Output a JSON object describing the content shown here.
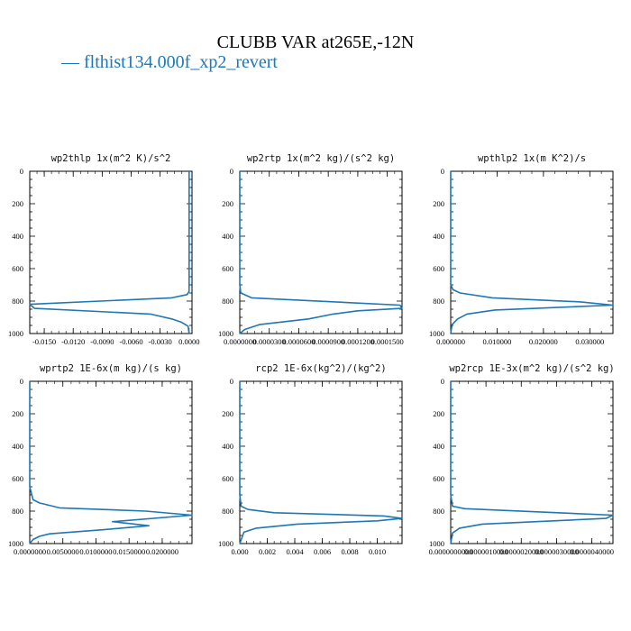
{
  "title": "CLUBB VAR at265E,-12N",
  "legend": {
    "entries": [
      {
        "marker": "—",
        "label": "flthist134.000f_xp2_revert",
        "color": "#1f77b4"
      }
    ]
  },
  "chart_data": [
    {
      "type": "line",
      "title": "wp2thlp  1x(m^2 K)/s^2",
      "xlim": [
        -0.0165,
        0.0003
      ],
      "ylim": [
        1000,
        0
      ],
      "xticks": [
        "-0.0150",
        "-0.0120",
        "-0.0090",
        "-0.0060",
        "-0.0030",
        "0.0000"
      ],
      "xtick_values": [
        -0.015,
        -0.012,
        -0.009,
        -0.006,
        -0.003,
        0.0
      ],
      "yticks": [
        "0",
        "200",
        "400",
        "600",
        "800",
        "1000"
      ],
      "series": [
        {
          "color": "#1f77b4",
          "x": [
            0.0,
            0.0,
            0.0,
            0.0,
            0.0,
            0.0,
            -0.0002,
            -0.0018,
            -0.0165,
            -0.016,
            -0.004,
            -0.0018,
            -0.0008,
            -0.0001,
            0.0
          ],
          "y": [
            0,
            200,
            400,
            600,
            700,
            740,
            760,
            780,
            820,
            845,
            880,
            910,
            930,
            955,
            1000
          ]
        }
      ]
    },
    {
      "type": "line",
      "title": "wp2rtp  1x(m^2 kg)/(s^2 kg)",
      "xlim": [
        0.0,
        0.000165
      ],
      "ylim": [
        1000,
        0
      ],
      "xticks": [
        "0.0000000",
        "0.0000300",
        "0.0000600",
        "0.0000900",
        "0.0001200",
        "0.0001500"
      ],
      "xtick_values": [
        0.0,
        3e-05,
        6e-05,
        9e-05,
        0.00012,
        0.00015
      ],
      "yticks": [
        "0",
        "200",
        "400",
        "600",
        "800",
        "1000"
      ],
      "series": [
        {
          "color": "#1f77b4",
          "x": [
            0.0,
            0.0,
            0.0,
            1e-06,
            1.2e-05,
            0.000163,
            0.000165,
            0.00012,
            9.5e-05,
            7e-05,
            2e-05,
            5e-06,
            0.0
          ],
          "y": [
            0,
            400,
            700,
            750,
            780,
            825,
            845,
            860,
            880,
            910,
            945,
            975,
            1000
          ]
        }
      ]
    },
    {
      "type": "line",
      "title": "wpthlp2  1x(m K^2)/s",
      "xlim": [
        0.0,
        0.035
      ],
      "ylim": [
        1000,
        0
      ],
      "xticks": [
        "0.000000",
        "0.010000",
        "0.020000",
        "0.030000"
      ],
      "xtick_values": [
        0.0,
        0.01,
        0.02,
        0.03
      ],
      "yticks": [
        "0",
        "200",
        "400",
        "600",
        "800",
        "1000"
      ],
      "series": [
        {
          "color": "#1f77b4",
          "x": [
            0.0,
            0.0,
            0.0,
            0.0005,
            0.002,
            0.009,
            0.028,
            0.035,
            0.0095,
            0.0035,
            0.0015,
            0.0003,
            0.0
          ],
          "y": [
            0,
            400,
            700,
            730,
            750,
            780,
            805,
            825,
            855,
            880,
            910,
            945,
            1000
          ]
        }
      ]
    },
    {
      "type": "line",
      "title": "wprtp2  1E-6x(m kg)/(s kg)",
      "xlim": [
        0.0,
        0.0245
      ],
      "ylim": [
        1000,
        0
      ],
      "xticks": [
        "0.0000000",
        "0.0050000",
        "0.0100000",
        "0.0150000",
        "0.0200000"
      ],
      "xtick_values": [
        0.0,
        0.005,
        0.01,
        0.015,
        0.02
      ],
      "yticks": [
        "0",
        "200",
        "400",
        "600",
        "800",
        "1000"
      ],
      "series": [
        {
          "color": "#1f77b4",
          "x": [
            0.0,
            0.0,
            0.0005,
            0.0015,
            0.0045,
            0.0175,
            0.0245,
            0.0125,
            0.018,
            0.011,
            0.003,
            0.0015,
            0.0005,
            0.0
          ],
          "y": [
            0,
            650,
            730,
            750,
            780,
            800,
            825,
            865,
            890,
            915,
            940,
            955,
            975,
            1000
          ]
        }
      ]
    },
    {
      "type": "line",
      "title": "rcp2  1E-6x(kg^2)/(kg^2)",
      "xlim": [
        0.0,
        0.0118
      ],
      "ylim": [
        1000,
        0
      ],
      "xticks": [
        "0.000",
        "0.002",
        "0.004",
        "0.006",
        "0.008",
        "0.010"
      ],
      "xtick_values": [
        0.0,
        0.002,
        0.004,
        0.006,
        0.008,
        0.01
      ],
      "yticks": [
        "0",
        "200",
        "400",
        "600",
        "800",
        "1000"
      ],
      "series": [
        {
          "color": "#1f77b4",
          "x": [
            0.0,
            0.0,
            0.0001,
            0.0006,
            0.0025,
            0.0105,
            0.0118,
            0.01,
            0.0042,
            0.0012,
            0.0003,
            0.0
          ],
          "y": [
            0,
            700,
            770,
            790,
            810,
            830,
            845,
            860,
            880,
            905,
            930,
            1000
          ]
        }
      ]
    },
    {
      "type": "line",
      "title": "wp2rcp  1E-3x(m^2 kg)/(s^2 kg)",
      "xlim": [
        0.0,
        4.6e-06
      ],
      "ylim": [
        1000,
        0
      ],
      "xticks": [
        "0.0000000000",
        "0.0000010000",
        "0.0000020000",
        "0.0000030000",
        "0.0000040000"
      ],
      "xtick_values": [
        0.0,
        1e-06,
        2e-06,
        3e-06,
        4e-06
      ],
      "yticks": [
        "0",
        "200",
        "400",
        "600",
        "800",
        "1000"
      ],
      "series": [
        {
          "color": "#1f77b4",
          "x": [
            0.0,
            0.0,
            5e-08,
            4e-07,
            4.6e-06,
            4.4e-06,
            9e-07,
            2.5e-07,
            5e-08,
            0.0
          ],
          "y": [
            0,
            700,
            770,
            785,
            825,
            845,
            880,
            905,
            935,
            1000
          ]
        }
      ]
    }
  ]
}
